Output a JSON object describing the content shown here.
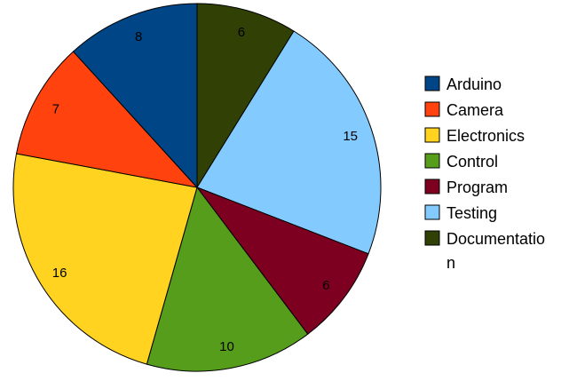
{
  "chart_data": {
    "type": "pie",
    "categories": [
      "Arduino",
      "Camera",
      "Electronics",
      "Control",
      "Program",
      "Testing",
      "Documentation"
    ],
    "values": [
      8,
      7,
      16,
      10,
      6,
      15,
      6
    ],
    "colors": [
      "#004586",
      "#ff420e",
      "#ffd320",
      "#579d1c",
      "#7e0021",
      "#83caff",
      "#314004"
    ],
    "start_angle_deg": 0,
    "direction": "counter-clockwise from top",
    "slice_order": [
      "Documentation",
      "Testing",
      "Program",
      "Control",
      "Electronics",
      "Camera",
      "Arduino"
    ],
    "data_labels": [
      "8",
      "7",
      "16",
      "10",
      "6",
      "15",
      "6"
    ],
    "legend": {
      "placement": "right",
      "entries": [
        "Arduino",
        "Camera",
        "Electronics",
        "Control",
        "Program",
        "Testing",
        [
          "Documentatio",
          "n"
        ]
      ]
    }
  }
}
